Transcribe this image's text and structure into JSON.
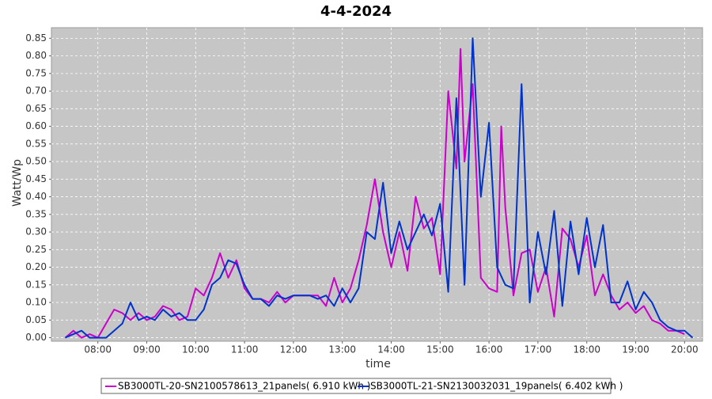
{
  "chart_data": {
    "type": "line",
    "title": "4-4-2024",
    "x_label": "time",
    "y_label": "Watt/Wp",
    "xlim": [
      "07:03",
      "20:22"
    ],
    "xticks": [
      "08:00",
      "09:00",
      "10:00",
      "11:00",
      "12:00",
      "13:00",
      "14:00",
      "15:00",
      "16:00",
      "17:00",
      "18:00",
      "19:00",
      "20:00"
    ],
    "ylim": [
      -0.01,
      0.88
    ],
    "yticks": [
      {
        "value": 0,
        "label": "0.00"
      },
      {
        "value": 0.05,
        "label": "0.05"
      },
      {
        "value": 0.1,
        "label": "0.10"
      },
      {
        "value": 0.15,
        "label": "0.15"
      },
      {
        "value": 0.2,
        "label": "0.20"
      },
      {
        "value": 0.25,
        "label": "0.25"
      },
      {
        "value": 0.3,
        "label": "0.30"
      },
      {
        "value": 0.35,
        "label": "0.35"
      },
      {
        "value": 0.4,
        "label": "0.40"
      },
      {
        "value": 0.45,
        "label": "0.45"
      },
      {
        "value": 0.5,
        "label": "0.50"
      },
      {
        "value": 0.55,
        "label": "0.55"
      },
      {
        "value": 0.6,
        "label": "0.60"
      },
      {
        "value": 0.65,
        "label": "0.65"
      },
      {
        "value": 0.7,
        "label": "0.70"
      },
      {
        "value": 0.75,
        "label": "0.75"
      },
      {
        "value": 0.8,
        "label": "0.80"
      },
      {
        "value": 0.85,
        "label": "0.85"
      }
    ],
    "grid": true,
    "series": [
      {
        "name": "SB3000TL-20-SN2100578613_21panels( 6.910 kWh )",
        "color": "#cc00cc",
        "x": [
          "07:20",
          "07:30",
          "07:40",
          "07:50",
          "08:00",
          "08:10",
          "08:20",
          "08:30",
          "08:40",
          "08:50",
          "09:00",
          "09:10",
          "09:20",
          "09:30",
          "09:40",
          "09:50",
          "10:00",
          "10:10",
          "10:20",
          "10:30",
          "10:40",
          "10:50",
          "11:00",
          "11:10",
          "11:20",
          "11:30",
          "11:40",
          "11:50",
          "12:00",
          "12:10",
          "12:20",
          "12:30",
          "12:40",
          "12:50",
          "13:00",
          "13:10",
          "13:20",
          "13:30",
          "13:40",
          "13:50",
          "14:00",
          "14:10",
          "14:20",
          "14:30",
          "14:40",
          "14:50",
          "15:00",
          "15:10",
          "15:20",
          "15:25",
          "15:30",
          "15:40",
          "15:50",
          "16:00",
          "16:10",
          "16:15",
          "16:20",
          "16:30",
          "16:40",
          "16:50",
          "17:00",
          "17:10",
          "17:20",
          "17:30",
          "17:40",
          "17:50",
          "18:00",
          "18:10",
          "18:20",
          "18:30",
          "18:40",
          "18:50",
          "19:00",
          "19:10",
          "19:20",
          "19:30",
          "19:40",
          "19:50",
          "20:00"
        ],
        "values": [
          0,
          0.02,
          0,
          0.01,
          0,
          0.04,
          0.08,
          0.07,
          0.05,
          0.07,
          0.05,
          0.06,
          0.09,
          0.08,
          0.05,
          0.06,
          0.14,
          0.12,
          0.17,
          0.24,
          0.17,
          0.22,
          0.14,
          0.11,
          0.11,
          0.1,
          0.13,
          0.1,
          0.12,
          0.12,
          0.12,
          0.12,
          0.09,
          0.17,
          0.1,
          0.14,
          0.22,
          0.32,
          0.45,
          0.3,
          0.2,
          0.3,
          0.19,
          0.4,
          0.31,
          0.34,
          0.18,
          0.7,
          0.48,
          0.82,
          0.5,
          0.72,
          0.17,
          0.14,
          0.13,
          0.6,
          0.37,
          0.12,
          0.24,
          0.25,
          0.13,
          0.2,
          0.06,
          0.31,
          0.28,
          0.2,
          0.29,
          0.12,
          0.18,
          0.12,
          0.08,
          0.1,
          0.07,
          0.09,
          0.05,
          0.04,
          0.02,
          0.02,
          0.01
        ]
      },
      {
        "name": "SB3000TL-21-SN2130032031_19panels( 6.402 kWh )",
        "color": "#0033cc",
        "x": [
          "07:20",
          "07:30",
          "07:40",
          "07:50",
          "08:00",
          "08:10",
          "08:20",
          "08:30",
          "08:40",
          "08:50",
          "09:00",
          "09:10",
          "09:20",
          "09:30",
          "09:40",
          "09:50",
          "10:00",
          "10:10",
          "10:20",
          "10:30",
          "10:40",
          "10:50",
          "11:00",
          "11:10",
          "11:20",
          "11:30",
          "11:40",
          "11:50",
          "12:00",
          "12:10",
          "12:20",
          "12:30",
          "12:40",
          "12:50",
          "13:00",
          "13:10",
          "13:20",
          "13:30",
          "13:40",
          "13:50",
          "14:00",
          "14:10",
          "14:20",
          "14:30",
          "14:40",
          "14:50",
          "15:00",
          "15:10",
          "15:20",
          "15:30",
          "15:40",
          "15:50",
          "16:00",
          "16:10",
          "16:20",
          "16:30",
          "16:40",
          "16:50",
          "17:00",
          "17:10",
          "17:20",
          "17:30",
          "17:40",
          "17:50",
          "18:00",
          "18:10",
          "18:20",
          "18:30",
          "18:40",
          "18:50",
          "19:00",
          "19:10",
          "19:20",
          "19:30",
          "19:40",
          "19:50",
          "20:00",
          "20:10"
        ],
        "values": [
          0,
          0.01,
          0.02,
          0,
          0,
          0,
          0.02,
          0.04,
          0.1,
          0.05,
          0.06,
          0.05,
          0.08,
          0.06,
          0.07,
          0.05,
          0.05,
          0.08,
          0.15,
          0.17,
          0.22,
          0.21,
          0.15,
          0.11,
          0.11,
          0.09,
          0.12,
          0.11,
          0.12,
          0.12,
          0.12,
          0.11,
          0.12,
          0.09,
          0.14,
          0.1,
          0.14,
          0.3,
          0.28,
          0.44,
          0.24,
          0.33,
          0.25,
          0.3,
          0.35,
          0.29,
          0.38,
          0.13,
          0.68,
          0.15,
          0.85,
          0.4,
          0.61,
          0.2,
          0.15,
          0.14,
          0.72,
          0.1,
          0.3,
          0.18,
          0.36,
          0.09,
          0.33,
          0.18,
          0.34,
          0.2,
          0.32,
          0.1,
          0.1,
          0.16,
          0.08,
          0.13,
          0.1,
          0.05,
          0.03,
          0.02,
          0.02,
          0
        ]
      }
    ]
  }
}
